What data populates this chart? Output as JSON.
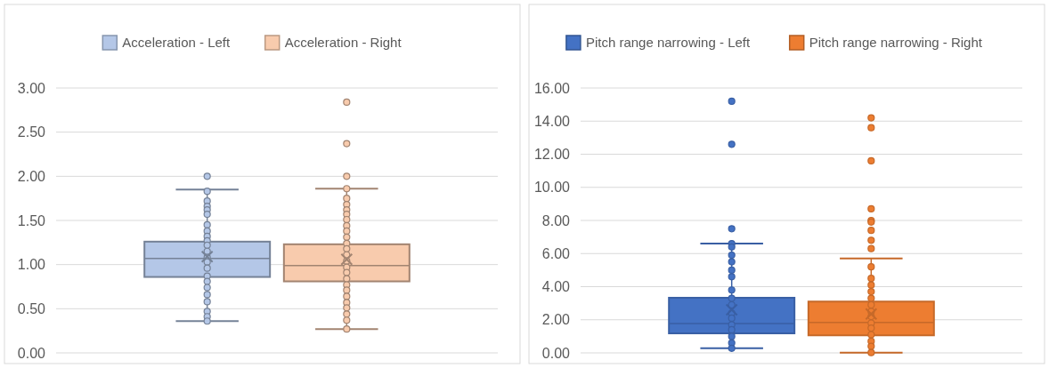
{
  "chart_data": [
    {
      "type": "box",
      "categories": [
        null
      ],
      "legend": "top",
      "grid": "y",
      "ylim": [
        0,
        3
      ],
      "yticks": [
        {
          "value": 0,
          "label": "0.00"
        },
        {
          "value": 0.5,
          "label": "0.50"
        },
        {
          "value": 1,
          "label": "1.00"
        },
        {
          "value": 1.5,
          "label": "1.50"
        },
        {
          "value": 2,
          "label": "2.00"
        },
        {
          "value": 2.5,
          "label": "2.50"
        },
        {
          "value": 3,
          "label": "3.00"
        }
      ],
      "series": [
        {
          "name": "Acceleration - Left",
          "color": "#b4c7e7",
          "boxes": [
            {
              "low": 0.36,
              "q1": 0.86,
              "median": 1.07,
              "q3": 1.26,
              "high": 1.85,
              "mean": 1.09,
              "outliers": [
                2.0,
                1.83,
                1.72,
                1.66,
                1.62,
                1.57,
                1.45,
                1.38,
                1.32,
                1.27,
                1.22,
                1.15,
                1.08,
                1.03,
                0.96,
                0.87,
                0.81,
                0.74,
                0.66,
                0.58,
                0.47,
                0.41,
                0.36
              ]
            }
          ]
        },
        {
          "name": "Acceleration - Right",
          "color": "#f8cbad",
          "boxes": [
            {
              "low": 0.27,
              "q1": 0.81,
              "median": 0.99,
              "q3": 1.23,
              "high": 1.86,
              "mean": 1.06,
              "outliers": [
                2.84,
                2.37,
                2.0,
                1.86,
                1.75,
                1.68,
                1.62,
                1.57,
                1.51,
                1.44,
                1.38,
                1.31,
                1.24,
                1.18,
                1.11,
                1.04,
                0.97,
                0.91,
                0.84,
                0.77,
                0.71,
                0.64,
                0.57,
                0.51,
                0.44,
                0.37,
                0.27
              ]
            }
          ]
        }
      ]
    },
    {
      "type": "box",
      "categories": [
        null
      ],
      "legend": "top",
      "grid": "y",
      "ylim": [
        0,
        16
      ],
      "yticks": [
        {
          "value": 0,
          "label": "0.00"
        },
        {
          "value": 2,
          "label": "2.00"
        },
        {
          "value": 4,
          "label": "4.00"
        },
        {
          "value": 6,
          "label": "6.00"
        },
        {
          "value": 8,
          "label": "8.00"
        },
        {
          "value": 10,
          "label": "10.00"
        },
        {
          "value": 12,
          "label": "12.00"
        },
        {
          "value": 14,
          "label": "14.00"
        },
        {
          "value": 16,
          "label": "16.00"
        }
      ],
      "series": [
        {
          "name": "Pitch range narrowing - Left",
          "color": "#4472c4",
          "boxes": [
            {
              "low": 0.28,
              "q1": 1.18,
              "median": 1.77,
              "q3": 3.33,
              "high": 6.6,
              "mean": 2.6,
              "outliers": [
                15.2,
                12.6,
                7.5,
                6.6,
                6.4,
                5.9,
                5.5,
                5.0,
                4.6,
                3.8,
                3.3,
                2.9,
                2.4,
                2.1,
                1.7,
                1.4,
                1.0,
                0.6,
                0.28
              ]
            }
          ]
        },
        {
          "name": "Pitch range narrowing - Right",
          "color": "#ed7d31",
          "boxes": [
            {
              "low": 0.02,
              "q1": 1.06,
              "median": 1.84,
              "q3": 3.1,
              "high": 5.7,
              "mean": 2.35,
              "outliers": [
                14.2,
                13.6,
                11.6,
                8.7,
                8.0,
                7.9,
                7.4,
                6.8,
                6.3,
                5.2,
                4.5,
                4.1,
                3.7,
                3.3,
                2.9,
                2.5,
                2.2,
                1.8,
                1.5,
                1.1,
                0.7,
                0.4,
                0.02
              ]
            }
          ]
        }
      ]
    }
  ]
}
